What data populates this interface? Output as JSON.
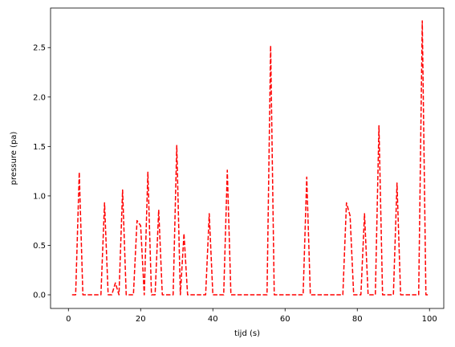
{
  "chart_data": {
    "type": "line",
    "xlabel": "tijd (s)",
    "ylabel": "pressure (pa)",
    "xlim": [
      -4.95,
      103.95
    ],
    "ylim": [
      -0.138,
      2.9
    ],
    "xticks": [
      0,
      20,
      40,
      60,
      80,
      100
    ],
    "xtick_labels": [
      "0",
      "20",
      "40",
      "60",
      "80",
      "100"
    ],
    "yticks": [
      0.0,
      0.5,
      1.0,
      1.5,
      2.0,
      2.5
    ],
    "ytick_labels": [
      "0.0",
      "0.5",
      "1.0",
      "1.5",
      "2.0",
      "2.5"
    ],
    "grid": false,
    "series": [
      {
        "color": "#ff0000",
        "line_style": "dashed",
        "x": [
          1,
          2,
          3,
          4,
          5,
          6,
          7,
          8,
          9,
          10,
          11,
          12,
          13,
          14,
          15,
          16,
          17,
          18,
          19,
          20,
          21,
          22,
          23,
          24,
          25,
          26,
          27,
          28,
          29,
          30,
          31,
          32,
          33,
          34,
          35,
          36,
          37,
          38,
          39,
          40,
          41,
          42,
          43,
          44,
          45,
          46,
          47,
          48,
          49,
          50,
          51,
          52,
          53,
          54,
          55,
          56,
          57,
          58,
          59,
          60,
          61,
          62,
          63,
          64,
          65,
          66,
          67,
          68,
          69,
          70,
          71,
          72,
          73,
          74,
          75,
          76,
          77,
          78,
          79,
          80,
          81,
          82,
          83,
          84,
          85,
          86,
          87,
          88,
          89,
          90,
          91,
          92,
          93,
          94,
          95,
          96,
          97,
          98,
          99,
          100
        ],
        "y": [
          0,
          0,
          1.24,
          0,
          0,
          0,
          0,
          0,
          0,
          0.93,
          0,
          0,
          0.12,
          0,
          1.06,
          0,
          0,
          0,
          0.75,
          0.7,
          0,
          1.24,
          0,
          0,
          0.86,
          0,
          0,
          0,
          0,
          1.51,
          0,
          0.62,
          0,
          0,
          0,
          0,
          0,
          0,
          0.82,
          0,
          0,
          0,
          0,
          1.26,
          0,
          0,
          0,
          0,
          0,
          0,
          0,
          0,
          0,
          0,
          0,
          2.52,
          0,
          0,
          0,
          0,
          0,
          0,
          0,
          0,
          0,
          1.19,
          0,
          0,
          0,
          0,
          0,
          0,
          0,
          0,
          0,
          0,
          0.93,
          0.8,
          0,
          0,
          0,
          0.82,
          0,
          0,
          0,
          1.71,
          0,
          0,
          0,
          0,
          1.13,
          0,
          0,
          0,
          0,
          0,
          0,
          2.77,
          0,
          0
        ]
      }
    ]
  }
}
